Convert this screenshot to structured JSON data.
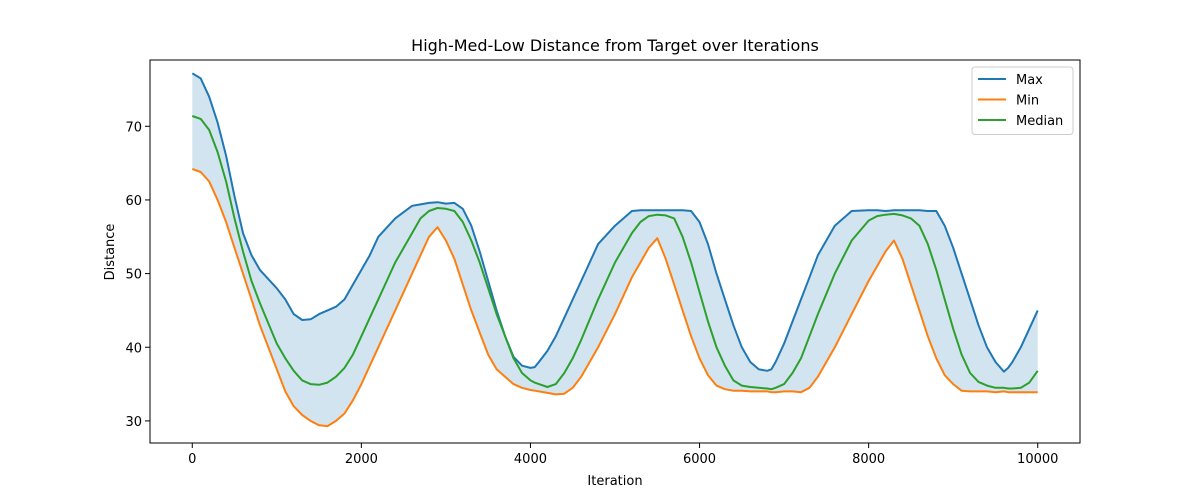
{
  "chart_data": {
    "type": "line",
    "title": "High-Med-Low Distance from Target over Iterations",
    "xlabel": "Iteration",
    "ylabel": "Distance",
    "xlim": [
      -500,
      10500
    ],
    "ylim": [
      27,
      79
    ],
    "xticks": [
      0,
      2000,
      4000,
      6000,
      8000,
      10000
    ],
    "xtick_labels": [
      "0",
      "2000",
      "4000",
      "6000",
      "8000",
      "10000"
    ],
    "yticks": [
      30,
      40,
      50,
      60,
      70
    ],
    "ytick_labels": [
      "30",
      "40",
      "50",
      "60",
      "70"
    ],
    "grid": false,
    "legend_position": "upper right",
    "fill_between": {
      "upper": "Max",
      "lower": "Min",
      "color": "#1f77b4",
      "alpha": 0.2
    },
    "x": [
      0,
      100,
      200,
      300,
      400,
      500,
      600,
      700,
      800,
      1000,
      1100,
      1200,
      1300,
      1400,
      1500,
      1600,
      1700,
      1800,
      1900,
      2000,
      2100,
      2200,
      2400,
      2600,
      2700,
      2800,
      2900,
      3000,
      3100,
      3200,
      3300,
      3400,
      3500,
      3600,
      3700,
      3800,
      3900,
      4000,
      4050,
      4100,
      4200,
      4300,
      4400,
      4500,
      4600,
      4800,
      5000,
      5200,
      5300,
      5400,
      5500,
      5600,
      5700,
      5800,
      5900,
      6000,
      6100,
      6200,
      6300,
      6400,
      6500,
      6600,
      6700,
      6800,
      6850,
      6900,
      7000,
      7100,
      7200,
      7300,
      7400,
      7600,
      7800,
      8000,
      8100,
      8200,
      8300,
      8400,
      8500,
      8600,
      8700,
      8800,
      8900,
      9000,
      9100,
      9200,
      9300,
      9400,
      9500,
      9600,
      9650,
      9700,
      9800,
      9900,
      10000
    ],
    "series": [
      {
        "name": "Max",
        "color": "#1f77b4",
        "values": [
          77.2,
          76.5,
          74,
          70.5,
          66,
          60.5,
          55.5,
          52.5,
          50.5,
          48,
          46.5,
          44.5,
          43.7,
          43.8,
          44.5,
          45,
          45.5,
          46.5,
          48.5,
          50.5,
          52.5,
          55,
          57.5,
          59.2,
          59.4,
          59.6,
          59.7,
          59.5,
          59.6,
          58.8,
          56.5,
          53,
          49,
          45,
          41.5,
          38.7,
          37.5,
          37.2,
          37.3,
          38,
          39.5,
          41.5,
          44,
          46.5,
          49,
          54,
          56.5,
          58.5,
          58.6,
          58.6,
          58.6,
          58.6,
          58.6,
          58.6,
          58.5,
          57,
          54,
          50,
          46.5,
          43,
          40,
          38,
          37,
          36.8,
          37,
          38,
          40.5,
          43.5,
          46.5,
          49.5,
          52.5,
          56.5,
          58.5,
          58.6,
          58.6,
          58.5,
          58.6,
          58.6,
          58.6,
          58.6,
          58.5,
          58.5,
          56.5,
          53.5,
          50,
          46.5,
          43,
          40,
          38,
          36.7,
          37.2,
          38,
          40,
          42.5,
          45
        ]
      },
      {
        "name": "Min",
        "color": "#ff7f0e",
        "values": [
          64.2,
          63.8,
          62.5,
          60,
          57,
          53.5,
          50,
          46.5,
          43,
          37,
          34,
          32,
          30.8,
          30,
          29.4,
          29.3,
          30,
          31,
          32.8,
          35,
          37.5,
          40,
          45,
          50,
          52.5,
          55,
          56.3,
          54.5,
          52,
          48.5,
          45,
          42,
          39,
          37,
          36,
          35,
          34.5,
          34.2,
          34.1,
          34,
          33.8,
          33.6,
          33.7,
          34.5,
          36,
          40,
          44.5,
          49.5,
          51.5,
          53.5,
          54.8,
          52,
          48.5,
          45,
          41.5,
          38.5,
          36.2,
          34.8,
          34.3,
          34.1,
          34.1,
          34,
          34,
          34,
          33.9,
          33.9,
          34,
          34,
          33.9,
          34.5,
          36,
          40,
          44.5,
          49,
          51,
          53,
          54.5,
          52,
          48.5,
          45,
          41.5,
          38.5,
          36.2,
          35,
          34.1,
          34,
          34,
          34,
          33.9,
          34,
          33.9,
          33.9,
          33.9,
          33.9,
          33.9
        ]
      },
      {
        "name": "Median",
        "color": "#2ca02c",
        "values": [
          71.4,
          71,
          69.5,
          66.5,
          62.5,
          57.5,
          53,
          49,
          46,
          40.5,
          38.5,
          36.8,
          35.5,
          35,
          34.9,
          35.2,
          36,
          37.2,
          39,
          41.5,
          44,
          46.5,
          51.5,
          55.5,
          57.5,
          58.5,
          58.9,
          58.8,
          58.5,
          57,
          54.5,
          51.5,
          48,
          44.5,
          41.5,
          38.5,
          36.5,
          35.5,
          35.2,
          35,
          34.6,
          35,
          36.5,
          38.5,
          41,
          46.5,
          51.5,
          55.5,
          57,
          57.8,
          58,
          57.9,
          57.5,
          55,
          51.5,
          47.5,
          43.5,
          40,
          37.5,
          35.5,
          34.8,
          34.6,
          34.5,
          34.4,
          34.3,
          34.5,
          35,
          36.5,
          38.5,
          41.5,
          44.5,
          50,
          54.5,
          57.2,
          57.8,
          58,
          58.1,
          57.9,
          57.5,
          56.5,
          54,
          50.5,
          46.5,
          42.5,
          39,
          36.5,
          35.3,
          34.8,
          34.5,
          34.5,
          34.4,
          34.4,
          34.5,
          35.2,
          36.8
        ]
      }
    ]
  }
}
